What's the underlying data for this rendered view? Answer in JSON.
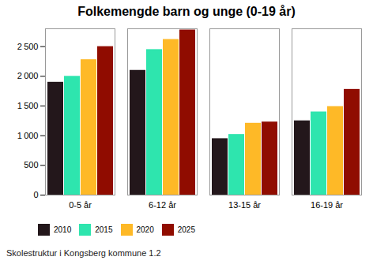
{
  "chart_data": {
    "type": "bar",
    "title": "Folkemengde barn og unge (0-19 år)",
    "categories": [
      "0-5 år",
      "6-12 år",
      "13-15 år",
      "16-19 år"
    ],
    "series": [
      {
        "name": "2010",
        "values": [
          1900,
          2100,
          950,
          1250
        ]
      },
      {
        "name": "2015",
        "values": [
          2000,
          2450,
          1020,
          1400
        ]
      },
      {
        "name": "2020",
        "values": [
          2280,
          2620,
          1210,
          1490
        ]
      },
      {
        "name": "2025",
        "values": [
          2500,
          2780,
          1230,
          1780
        ]
      }
    ],
    "ylim": [
      0,
      2800
    ],
    "yticks": [
      0,
      500,
      {
        "value": 1000,
        "label": "1 000"
      },
      {
        "value": 1500,
        "label": "1 500"
      },
      {
        "value": 2000,
        "label": "2 000"
      },
      {
        "value": 2500,
        "label": "2 500"
      }
    ],
    "grid": false,
    "legend": "lower left",
    "annotations": [
      "Skolestruktur i Kongsberg kommune 1.2"
    ]
  }
}
